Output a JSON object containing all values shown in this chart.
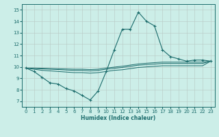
{
  "xlabel": "Humidex (Indice chaleur)",
  "bg_color": "#cceee8",
  "line_color": "#1a6b6b",
  "grid_color": "#b8c8c4",
  "xlim": [
    -0.5,
    23.5
  ],
  "ylim": [
    6.5,
    15.5
  ],
  "xticks": [
    0,
    1,
    2,
    3,
    4,
    5,
    6,
    7,
    8,
    9,
    10,
    11,
    12,
    13,
    14,
    15,
    16,
    17,
    18,
    19,
    20,
    21,
    22,
    23
  ],
  "yticks": [
    7,
    8,
    9,
    10,
    11,
    12,
    13,
    14,
    15
  ],
  "line1_x": [
    0,
    1,
    2,
    3,
    4,
    5,
    6,
    7,
    8,
    9,
    10,
    11,
    12,
    13,
    14,
    15,
    16,
    17,
    18,
    19,
    20,
    21,
    22,
    23
  ],
  "line1_y": [
    9.9,
    9.6,
    9.1,
    8.6,
    8.5,
    8.1,
    7.9,
    7.5,
    7.1,
    7.9,
    9.6,
    11.5,
    13.3,
    13.3,
    14.8,
    14.0,
    13.6,
    11.5,
    10.9,
    10.7,
    10.5,
    10.6,
    10.6,
    10.5
  ],
  "line2_x": [
    0,
    1,
    2,
    3,
    4,
    5,
    6,
    7,
    8,
    9,
    10,
    11,
    12,
    13,
    14,
    15,
    16,
    17,
    18,
    19,
    20,
    21,
    22,
    23
  ],
  "line2_y": [
    9.9,
    9.8,
    9.7,
    9.65,
    9.6,
    9.55,
    9.5,
    9.5,
    9.45,
    9.5,
    9.6,
    9.7,
    9.75,
    9.85,
    9.95,
    10.0,
    10.05,
    10.1,
    10.1,
    10.1,
    10.1,
    10.1,
    10.1,
    10.5
  ],
  "line3_x": [
    0,
    1,
    2,
    3,
    4,
    5,
    6,
    7,
    8,
    9,
    10,
    11,
    12,
    13,
    14,
    15,
    16,
    17,
    18,
    19,
    20,
    21,
    22,
    23
  ],
  "line3_y": [
    9.9,
    9.87,
    9.83,
    9.8,
    9.77,
    9.73,
    9.7,
    9.7,
    9.65,
    9.7,
    9.8,
    9.88,
    9.95,
    10.05,
    10.15,
    10.2,
    10.25,
    10.3,
    10.3,
    10.3,
    10.3,
    10.3,
    10.3,
    10.5
  ],
  "line4_x": [
    0,
    1,
    2,
    3,
    4,
    5,
    6,
    7,
    8,
    9,
    10,
    11,
    12,
    13,
    14,
    15,
    16,
    17,
    18,
    19,
    20,
    21,
    22,
    23
  ],
  "line4_y": [
    9.9,
    9.9,
    9.88,
    9.86,
    9.84,
    9.82,
    9.8,
    9.8,
    9.77,
    9.8,
    9.9,
    9.98,
    10.06,
    10.16,
    10.26,
    10.32,
    10.37,
    10.42,
    10.42,
    10.42,
    10.42,
    10.42,
    10.42,
    10.5
  ]
}
